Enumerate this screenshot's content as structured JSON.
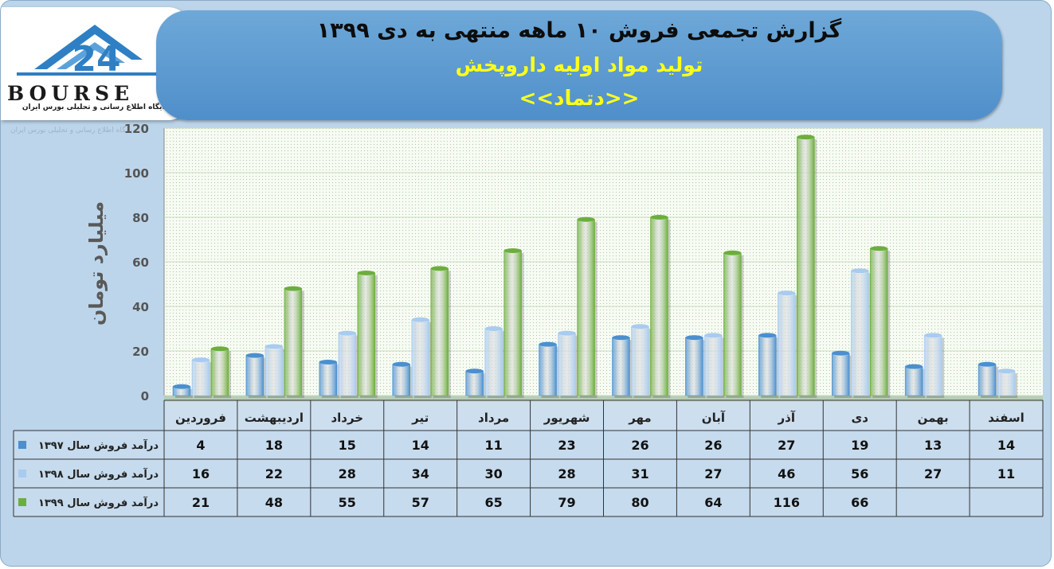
{
  "header": {
    "title": "گزارش تجمعی فروش ۱۰ ماهه منتهی به دی ۱۳۹۹",
    "subtitle": "تولید مواد اولیه داروپخش",
    "symbol": "<<دتماد>>"
  },
  "logo": {
    "word": "BOURSE",
    "tagline": "پایگاه اطلاع رسانی و تحلیلی بورس ایران"
  },
  "watermark": "پایگاه اطلاع رسانی و تحلیلی بورس ایران",
  "colors": {
    "s1397": "#4a8fd0",
    "s1398": "#a9cbef",
    "s1399": "#6cae3d"
  },
  "chart_data": {
    "type": "bar",
    "ylabel": "میلیارد تومان",
    "ylim": [
      0,
      120
    ],
    "yticks": [
      0,
      20,
      40,
      60,
      80,
      100,
      120
    ],
    "grid": true,
    "legend": "table-left",
    "categories": [
      "فروردین",
      "اردیبهشت",
      "خرداد",
      "تیر",
      "مرداد",
      "شهریور",
      "مهر",
      "آبان",
      "آذر",
      "دی",
      "بهمن",
      "اسفند"
    ],
    "series": [
      {
        "name": "درآمد فروش سال ۱۳۹۷",
        "values": [
          4,
          18,
          15,
          14,
          11,
          23,
          26,
          26,
          27,
          19,
          13,
          14
        ]
      },
      {
        "name": "درآمد فروش سال ۱۳۹۸",
        "values": [
          16,
          22,
          28,
          34,
          30,
          28,
          31,
          27,
          46,
          56,
          27,
          11
        ]
      },
      {
        "name": "درآمد فروش سال ۱۳۹۹",
        "values": [
          21,
          48,
          55,
          57,
          65,
          79,
          80,
          64,
          116,
          66,
          null,
          null
        ]
      }
    ]
  }
}
